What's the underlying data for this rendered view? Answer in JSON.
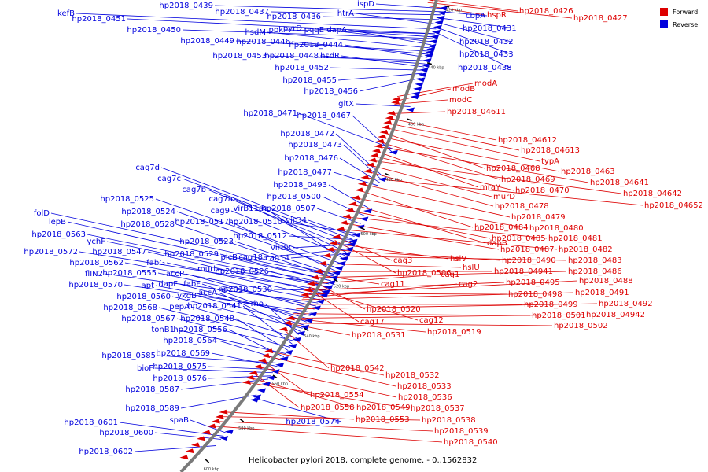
{
  "map": {
    "caption": "Helicobacter pylori 2018, complete genome. - 0..1562832",
    "colors": {
      "forward": "#dd0000",
      "reverse": "#0000dd",
      "backbone": "#7a7a7a"
    },
    "legend": [
      {
        "label": "Forward",
        "color": "#dd0000",
        "icon": "red-square-icon"
      },
      {
        "label": "Reverse",
        "color": "#0000dd",
        "icon": "blue-square-icon"
      }
    ],
    "scale_ticks": [
      "420 kbp",
      "440 kbp",
      "460 kbp",
      "480 kbp",
      "500 kbp",
      "520 kbp",
      "540 kbp",
      "560 kbp",
      "580 kbp",
      "600 kbp"
    ]
  },
  "labels_reverse": [
    "ispD",
    "hp2018_0439",
    "hp2018_0437",
    "hp2018_0436",
    "htrA",
    "kefB",
    "hp2018_0451",
    "hp2018_0450",
    "ppk",
    "pyrD",
    "pqqE",
    "dapA",
    "hsdM",
    "hp2018_0449",
    "hp2018_0446",
    "hp2018_0444",
    "hp2018_0453",
    "hp2018_0448",
    "hsdR",
    "hp2018_0452",
    "hp2018_0455",
    "hp2018_0456",
    "gltX",
    "hp2018_0471",
    "hp2018_0467",
    "hp2018_0472",
    "hp2018_0473",
    "hp2018_0476",
    "hp2018_0477",
    "cag7d",
    "cag7c",
    "hp2018_0493",
    "cag7b",
    "cag7a",
    "hp2018_0525",
    "hp2018_0500",
    "cag9",
    "virB11a",
    "hp2018_0507",
    "hp2018_0524",
    "hp2018_0517",
    "hp2018_0510",
    "virD4",
    "folD",
    "hp2018_0528",
    "lepB",
    "hp2018_0563",
    "hp2018_0512",
    "hp2018_0523",
    "virB8",
    "ychF",
    "hp2018_0572",
    "hp2018_0547",
    "hp2018_0529",
    "cag18",
    "cag14",
    "picB",
    "fabG",
    "hp2018_0562",
    "flIN2",
    "hp2018_0555",
    "accP",
    "murl",
    "hp2018_0526",
    "hp2018_0570",
    "apt",
    "dapF",
    "fabF",
    "hp2018_0530",
    "ykgB",
    "hp2018_0560",
    "accA",
    "rho",
    "pepA",
    "hp2018_0568",
    "hp2018_0541",
    "hp2018_0567",
    "hp2018_0548",
    "tonB1",
    "hp2018_0556",
    "hp2018_0564",
    "hp2018_0585",
    "hp2018_0569",
    "hp2018_0575",
    "bioF",
    "hp2018_0576",
    "hp2018_0587",
    "hp2018_0589",
    "spaB",
    "hp2018_0574",
    "hp2018_0601",
    "hp2018_0600",
    "hp2018_0602",
    "cbpA",
    "hp2018_0431",
    "hp2018_0432",
    "hp2018_0433",
    "hp2018_0438"
  ],
  "labels_forward": [
    "hp2018_0426",
    "hp2018_0427",
    "hspR",
    "modB",
    "modA",
    "modC",
    "hp2018_04611",
    "hp2018_04612",
    "hp2018_04613",
    "typA",
    "hp2018_0468",
    "hp2018_0463",
    "hp2018_0469",
    "hp2018_04641",
    "mraY",
    "hp2018_0470",
    "hp2018_04642",
    "murD",
    "hp2018_0478",
    "hp2018_04652",
    "hp2018_0479",
    "hp2018_0484",
    "hp2018_0480",
    "dapB",
    "hp2018_0485",
    "hp2018_0481",
    "hp2018_0487",
    "hp2018_0482",
    "cag3",
    "hslV",
    "hp2018_0490",
    "hp2018_0483",
    "hslU",
    "hp2018_04941",
    "hp2018_0486",
    "hp2018_0506",
    "cag1",
    "hp2018_0495",
    "hp2018_0488",
    "cag11",
    "cag2",
    "hp2018_0498",
    "hp2018_0491",
    "hp2018_0499",
    "hp2018_0492",
    "hp2018_0520",
    "hp2018_0501",
    "hp2018_04942",
    "cag12",
    "hp2018_0502",
    "cag17",
    "hp2018_0519",
    "hp2018_0531",
    "hp2018_0542",
    "hp2018_0532",
    "hp2018_0533",
    "hp2018_0554",
    "hp2018_0536",
    "hp2018_0558",
    "hp2018_0549",
    "hp2018_0537",
    "hp2018_0553",
    "hp2018_0538",
    "hp2018_0539",
    "hp2018_0540"
  ]
}
